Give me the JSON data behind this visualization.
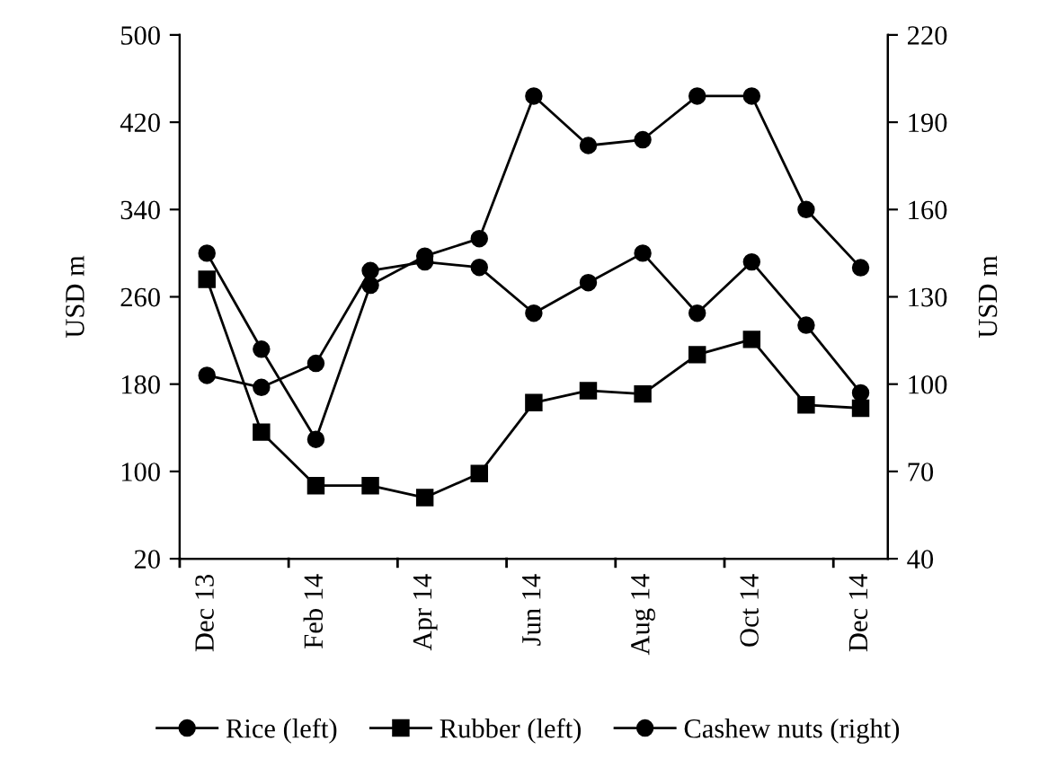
{
  "chart_data": {
    "type": "line",
    "ylabel": "USD m",
    "y2label": "USD m",
    "categories": [
      "Dec 13",
      null,
      "Feb 14",
      null,
      "Apr 14",
      null,
      "Jun 14",
      null,
      "Aug 14",
      null,
      "Oct 14",
      null,
      "Dec 14"
    ],
    "series": [
      {
        "name": "Rice (left)",
        "color": "#000000",
        "marker": "circle",
        "values": [
          188,
          177,
          199,
          284,
          292,
          287,
          245,
          273,
          300,
          245,
          292,
          234,
          172
        ]
      },
      {
        "name": "Rubber (left)",
        "color": "#000000",
        "marker": "square",
        "values": [
          276,
          136,
          87,
          87,
          76,
          98,
          163,
          174,
          171,
          207,
          221,
          161,
          158
        ]
      },
      {
        "name": "Cashew nuts (right)",
        "color": "#000000",
        "marker": "circle",
        "axis": "y2",
        "values": [
          145,
          112,
          81,
          134,
          144,
          150,
          199,
          182,
          184,
          199,
          199,
          160,
          140
        ]
      }
    ],
    "ylim": [
      20,
      500
    ],
    "yticks": [
      20,
      100,
      180,
      260,
      340,
      420,
      500
    ],
    "y2lim": [
      40,
      220
    ],
    "y2ticks": [
      40,
      70,
      100,
      130,
      160,
      190,
      220
    ],
    "grid": false,
    "legend": "bottom"
  }
}
